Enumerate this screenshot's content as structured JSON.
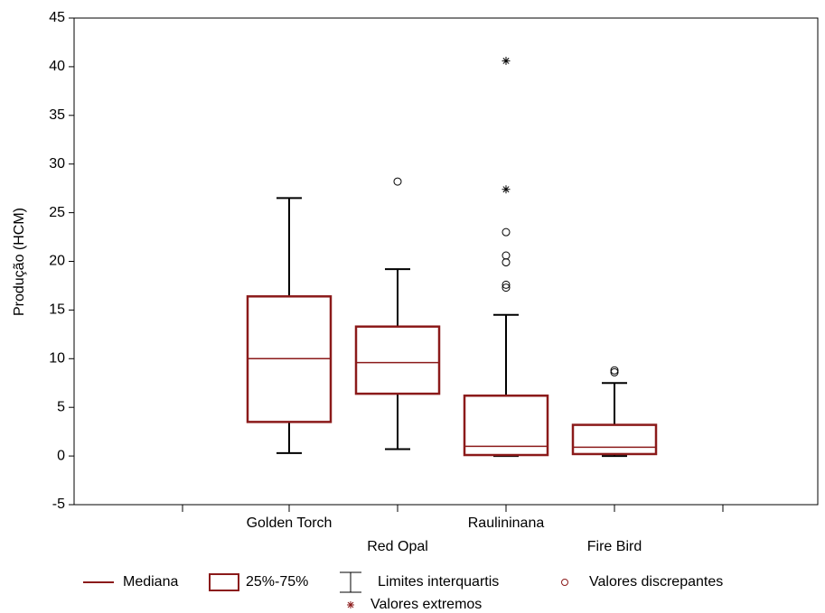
{
  "chart_data": {
    "type": "box",
    "y_label": "Produção (HCM)",
    "categories": [
      "Golden Torch",
      "Red Opal",
      "Raulininana",
      "Fire Bird"
    ],
    "boxes": [
      {
        "whisker_low": 0.3,
        "q1": 3.5,
        "median": 10,
        "q3": 16.4,
        "whisker_high": 26.5,
        "outliers": [],
        "extremes": []
      },
      {
        "whisker_low": 0.7,
        "q1": 6.4,
        "median": 9.6,
        "q3": 13.3,
        "whisker_high": 19.2,
        "outliers": [
          28.2
        ],
        "extremes": []
      },
      {
        "whisker_low": 0,
        "q1": 0.1,
        "median": 1.0,
        "q3": 6.2,
        "whisker_high": 14.5,
        "outliers": [
          17.3,
          17.6,
          19.9,
          20.6,
          23.0
        ],
        "extremes": [
          27.4,
          40.6
        ]
      },
      {
        "whisker_low": 0,
        "q1": 0.2,
        "median": 0.9,
        "q3": 3.2,
        "whisker_high": 7.5,
        "outliers": [
          8.6,
          8.8
        ],
        "extremes": []
      }
    ],
    "box_color": "#8b1a1a",
    "whisker_color": "#000000",
    "ylim": [
      -5,
      45
    ],
    "yticks": [
      -5,
      0,
      5,
      10,
      15,
      20,
      25,
      30,
      35,
      40,
      45
    ],
    "legend": {
      "median": "Mediana",
      "box": "25%-75%",
      "whisker": "Limites interquartis",
      "outlier": "Valores discrepantes",
      "extreme": "Valores extremos"
    }
  }
}
